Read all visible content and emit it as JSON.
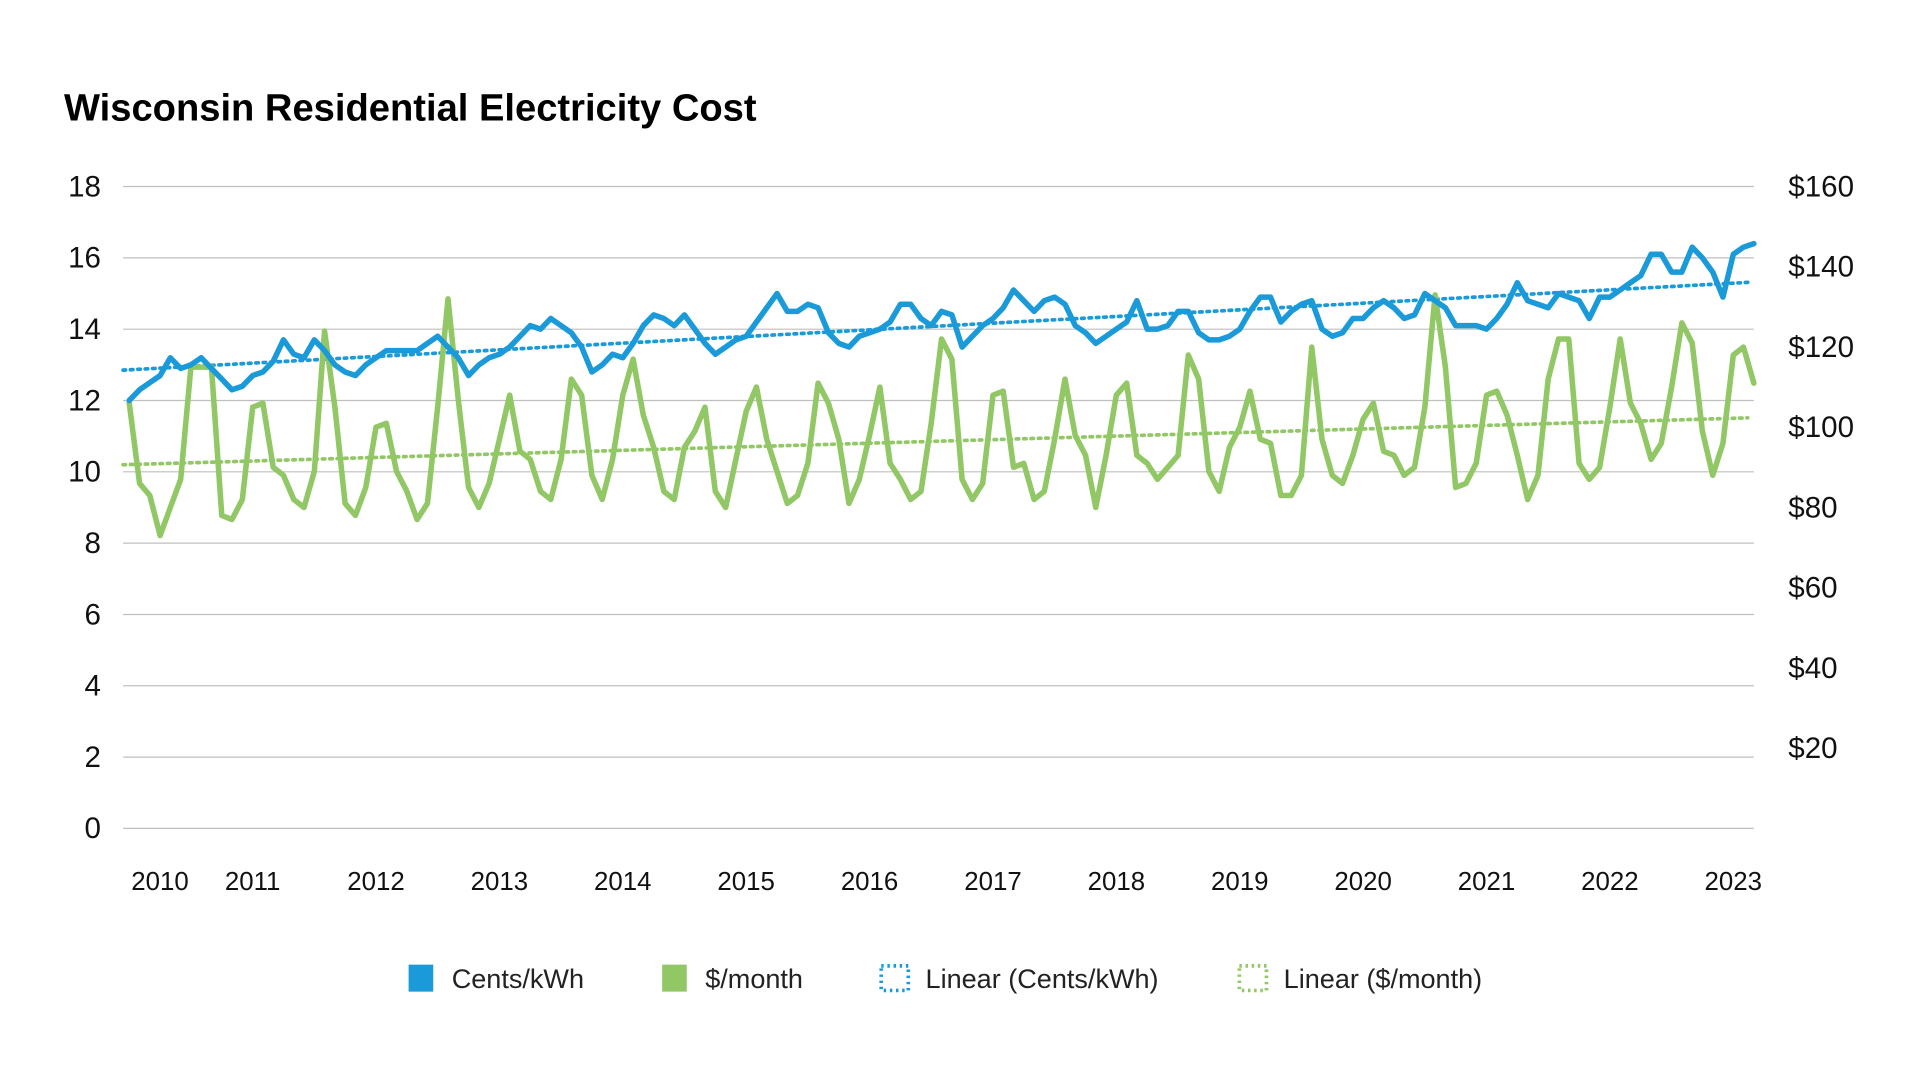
{
  "chart_data": {
    "type": "line",
    "title": "Wisconsin Residential Electricity Cost",
    "x_start": "2010-01",
    "x_frequency": "monthly",
    "x_tick_labels": [
      "2010",
      "2011",
      "2012",
      "2013",
      "2014",
      "2015",
      "2016",
      "2017",
      "2018",
      "2019",
      "2020",
      "2021",
      "2022",
      "2023"
    ],
    "y_left": {
      "range": [
        0,
        18
      ],
      "ticks": [
        "0",
        "2",
        "4",
        "6",
        "8",
        "10",
        "12",
        "14",
        "16",
        "18"
      ]
    },
    "y_right": {
      "range": [
        0,
        160
      ],
      "ticks": [
        "$20",
        "$40",
        "$60",
        "$80",
        "$100",
        "$120",
        "$140",
        "$160"
      ],
      "tick_values": [
        20,
        40,
        60,
        80,
        100,
        120,
        140,
        160
      ]
    },
    "grid": true,
    "legend_position": "bottom",
    "series": [
      {
        "name": "Cents/kWh",
        "axis": "left",
        "color": "#1a9ad9",
        "values": [
          12.0,
          12.3,
          12.5,
          12.7,
          13.2,
          12.9,
          13.0,
          13.2,
          12.9,
          12.6,
          12.3,
          12.4,
          12.7,
          12.8,
          13.1,
          13.7,
          13.3,
          13.2,
          13.7,
          13.4,
          13.0,
          12.8,
          12.7,
          13.0,
          13.2,
          13.4,
          13.4,
          13.4,
          13.4,
          13.6,
          13.8,
          13.5,
          13.2,
          12.7,
          13.0,
          13.2,
          13.3,
          13.5,
          13.8,
          14.1,
          14.0,
          14.3,
          14.1,
          13.9,
          13.5,
          12.8,
          13.0,
          13.3,
          13.2,
          13.6,
          14.1,
          14.4,
          14.3,
          14.1,
          14.4,
          14.0,
          13.6,
          13.3,
          13.5,
          13.7,
          13.8,
          14.2,
          14.6,
          15.0,
          14.5,
          14.5,
          14.7,
          14.6,
          13.9,
          13.6,
          13.5,
          13.8,
          13.9,
          14.0,
          14.2,
          14.7,
          14.7,
          14.3,
          14.1,
          14.5,
          14.4,
          13.5,
          13.8,
          14.1,
          14.3,
          14.6,
          15.1,
          14.8,
          14.5,
          14.8,
          14.9,
          14.7,
          14.1,
          13.9,
          13.6,
          13.8,
          14.0,
          14.2,
          14.8,
          14.0,
          14.0,
          14.1,
          14.5,
          14.5,
          13.9,
          13.7,
          13.7,
          13.8,
          14.0,
          14.5,
          14.9,
          14.9,
          14.2,
          14.5,
          14.7,
          14.8,
          14.0,
          13.8,
          13.9,
          14.3,
          14.3,
          14.6,
          14.8,
          14.6,
          14.3,
          14.4,
          15.0,
          14.8,
          14.6,
          14.1,
          14.1,
          14.1,
          14.0,
          14.3,
          14.7,
          15.3,
          14.8,
          14.7,
          14.6,
          15.0,
          14.9,
          14.8,
          14.3,
          14.9,
          14.9,
          15.1,
          15.3,
          15.5,
          16.1,
          16.1,
          15.6,
          15.6,
          16.3,
          16.0,
          15.6,
          14.9,
          16.1,
          16.3,
          16.4
        ]
      },
      {
        "name": "$/month",
        "axis": "right",
        "color": "#92c765",
        "values": [
          106,
          86,
          83,
          73,
          80,
          87,
          115,
          115,
          115,
          78,
          77,
          82,
          105,
          106,
          90,
          88,
          82,
          80,
          89,
          124,
          105,
          81,
          78,
          85,
          100,
          101,
          89,
          84,
          77,
          81,
          105,
          132,
          107,
          85,
          80,
          86,
          97,
          108,
          94,
          92,
          84,
          82,
          92,
          112,
          108,
          88,
          82,
          92,
          108,
          117,
          103,
          95,
          84,
          82,
          95,
          99,
          105,
          84,
          80,
          92,
          104,
          110,
          97,
          89,
          81,
          83,
          91,
          111,
          106,
          97,
          81,
          87,
          98,
          110,
          91,
          87,
          82,
          84,
          101,
          122,
          117,
          87,
          82,
          86,
          108,
          109,
          90,
          91,
          82,
          84,
          97,
          112,
          98,
          93,
          80,
          93,
          108,
          111,
          93,
          91,
          87,
          90,
          93,
          118,
          112,
          89,
          84,
          95,
          100,
          109,
          97,
          96,
          83,
          83,
          88,
          120,
          97,
          88,
          86,
          93,
          102,
          106,
          94,
          93,
          88,
          90,
          105,
          133,
          115,
          85,
          86,
          91,
          108,
          109,
          103,
          93,
          82,
          88,
          112,
          122,
          122,
          91,
          87,
          90,
          105,
          122,
          106,
          101,
          92,
          96,
          110,
          126,
          121,
          99,
          88,
          96,
          118,
          120,
          111
        ]
      }
    ],
    "trendlines": [
      {
        "name": "Linear (Cents/kWh)",
        "of": "Cents/kWh",
        "style": "dotted",
        "color": "#1a9ad9"
      },
      {
        "name": "Linear ($/month)",
        "of": "$/month",
        "style": "dotted",
        "color": "#92c765"
      }
    ]
  }
}
